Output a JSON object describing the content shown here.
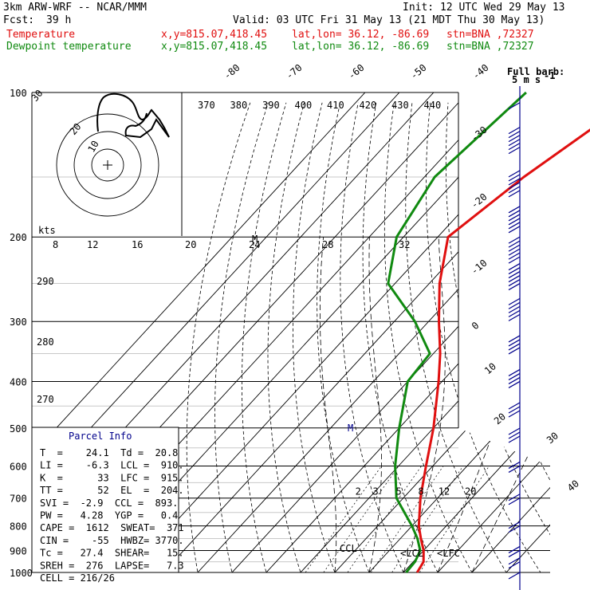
{
  "header": {
    "model": "3km ARW-WRF -- NCAR/MMM",
    "init": "Init: 12 UTC Wed 29 May 13",
    "fcst_label": "Fcst:",
    "fcst_value": "39 h",
    "valid": "Valid: 03 UTC Fri 31 May 13 (21 MDT Thu 30 May 13)",
    "temp_label": "Temperature",
    "dew_label": "Dewpoint temperature",
    "xy": "x,y=815.07,418.45",
    "latlon": "lat,lon= 36.12, -86.69",
    "stn": "stn=BNA ,72327"
  },
  "barb_legend": {
    "line1": "Full barb:",
    "line2": "5 m s",
    "sup": "-1"
  },
  "colors": {
    "temperature": "#e01010",
    "dewpoint": "#108a10",
    "barbs": "#00008b",
    "text": "#000000"
  },
  "chart_data": {
    "type": "line",
    "title": "",
    "pressure_levels": [
      100,
      200,
      300,
      400,
      500,
      600,
      700,
      800,
      900,
      1000
    ],
    "pressure_axis": "log, 100-1000 hPa",
    "temp_isotherm_labels": [
      "-80",
      "-70",
      "-60",
      "-50",
      "-40",
      "-30",
      "-20",
      "-10",
      "0",
      "10",
      "20",
      "30",
      "40"
    ],
    "theta_labels": [
      "370",
      "380",
      "390",
      "400",
      "410",
      "420",
      "430",
      "440"
    ],
    "mixing_ratio_labels": [
      "2",
      "3",
      "5",
      "8",
      "12",
      "20"
    ],
    "lower_theta_labels": [
      "290",
      "280",
      "270"
    ],
    "hodograph": {
      "kts_label": "kts",
      "ring_labels": [
        "10",
        "20",
        "30"
      ],
      "speed_ticks": [
        "8",
        "12",
        "16",
        "20",
        "24",
        "28",
        "32"
      ],
      "marker": "M"
    },
    "series": [
      {
        "name": "Temperature",
        "points": [
          [
            100,
            -39
          ],
          [
            150,
            -51
          ],
          [
            200,
            -57
          ],
          [
            250,
            -47
          ],
          [
            300,
            -37
          ],
          [
            350,
            -28
          ],
          [
            400,
            -21
          ],
          [
            500,
            -10
          ],
          [
            600,
            -2
          ],
          [
            700,
            5
          ],
          [
            800,
            12
          ],
          [
            850,
            16
          ],
          [
            900,
            20
          ],
          [
            950,
            23
          ],
          [
            1000,
            24
          ]
        ]
      },
      {
        "name": "Dewpoint temperature",
        "points": [
          [
            100,
            -73
          ],
          [
            150,
            -77
          ],
          [
            200,
            -72
          ],
          [
            250,
            -62
          ],
          [
            300,
            -44
          ],
          [
            350,
            -31
          ],
          [
            400,
            -30
          ],
          [
            500,
            -20
          ],
          [
            600,
            -11
          ],
          [
            700,
            -2
          ],
          [
            800,
            10
          ],
          [
            850,
            15
          ],
          [
            900,
            19
          ],
          [
            950,
            20.5
          ],
          [
            1000,
            20.8
          ]
        ]
      }
    ],
    "wind_barbs": [
      {
        "p": 105,
        "kn": 10
      },
      {
        "p": 130,
        "kn": 55
      },
      {
        "p": 160,
        "kn": 60
      },
      {
        "p": 190,
        "kn": 60
      },
      {
        "p": 220,
        "kn": 60
      },
      {
        "p": 250,
        "kn": 55
      },
      {
        "p": 290,
        "kn": 45
      },
      {
        "p": 340,
        "kn": 40
      },
      {
        "p": 400,
        "kn": 35
      },
      {
        "p": 460,
        "kn": 30
      },
      {
        "p": 520,
        "kn": 25
      },
      {
        "p": 600,
        "kn": 20
      },
      {
        "p": 700,
        "kn": 20
      },
      {
        "p": 800,
        "kn": 15
      },
      {
        "p": 900,
        "kn": 15
      },
      {
        "p": 950,
        "kn": 15
      },
      {
        "p": 1000,
        "kn": 10
      }
    ],
    "parcel_annotations": {
      "ccl": "CCL",
      "lcl": "LCL",
      "lfc": "LFC"
    }
  },
  "parcel_info": {
    "title": "Parcel Info",
    "rows": [
      "T  =    24.1  Td =  20.8",
      "LI =    -6.3  LCL =  910.",
      "K  =      33  LFC =  915.",
      "TT =      52  EL  =  204.",
      "SVI =  -2.9  CCL =  893.",
      "PW =   4.28  YGP =   0.4",
      "CAPE =  1612  SWEAT=  371",
      "CIN =    -55  HWBZ= 3770.",
      "Tc =   27.4  SHEAR=   15.",
      "SREH =  276  LAPSE=   7.3",
      "CELL = 216/26"
    ]
  }
}
